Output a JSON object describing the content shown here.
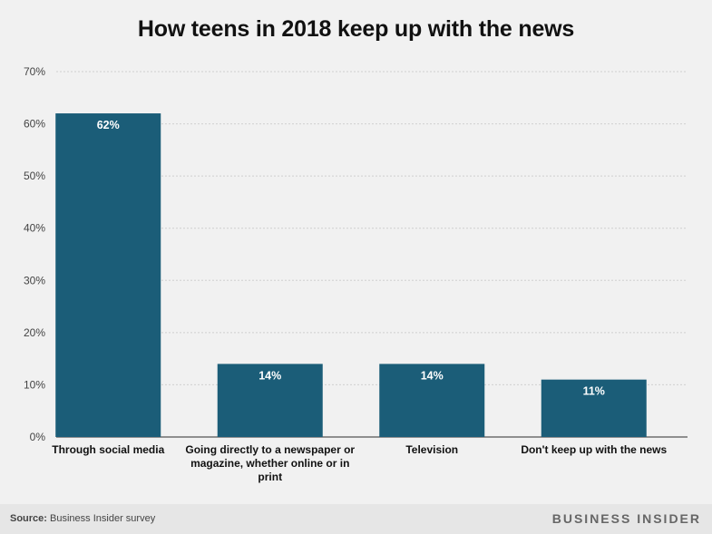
{
  "chart_data": {
    "type": "bar",
    "title": "How teens in 2018 keep up with the news",
    "categories": [
      [
        "Through social media"
      ],
      [
        "Going directly to a newspaper or",
        "magazine, whether online or in",
        "print"
      ],
      [
        "Television"
      ],
      [
        "Don't keep up with the news"
      ]
    ],
    "values": [
      62,
      14,
      14,
      11
    ],
    "data_labels": [
      "62%",
      "14%",
      "14%",
      "11%"
    ],
    "ylim": [
      0,
      70
    ],
    "yticks": [
      0,
      10,
      20,
      30,
      40,
      50,
      60,
      70
    ],
    "ytick_labels": [
      "0%",
      "10%",
      "20%",
      "30%",
      "40%",
      "50%",
      "60%",
      "70%"
    ],
    "bar_color": "#1b5d78",
    "grid": true
  },
  "footer": {
    "source_label": "Source:",
    "source_text": "Business Insider survey",
    "brand": "BUSINESS INSIDER"
  }
}
